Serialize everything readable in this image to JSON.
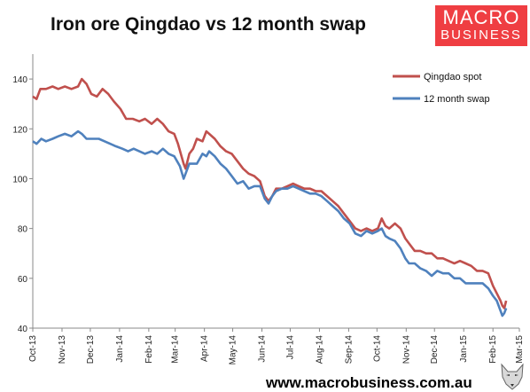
{
  "header": {
    "title": "Iron ore Qingdao vs 12 month swap"
  },
  "logo": {
    "line1": "MACRO",
    "line2": "BUSINESS"
  },
  "footer": {
    "url": "www.macrobusiness.com.au"
  },
  "colors": {
    "spot": "#c0504d",
    "swap": "#4f81bd",
    "axis": "#888888"
  },
  "chart_data": {
    "type": "line",
    "title": "Iron ore Qingdao vs 12 month swap",
    "xlabel": "",
    "ylabel": "",
    "ylim": [
      40,
      150
    ],
    "yticks": [
      40,
      60,
      80,
      100,
      120,
      140
    ],
    "xlim": [
      "2013-10-01",
      "2015-03-01"
    ],
    "xticks": [
      "Oct-13",
      "Nov-13",
      "Dec-13",
      "Jan-14",
      "Feb-14",
      "Mar-14",
      "Apr-14",
      "May-14",
      "Jun-14",
      "Jul-14",
      "Aug-14",
      "Sep-14",
      "Oct-14",
      "Nov-14",
      "Dec-14",
      "Jan-15",
      "Feb-15",
      "Mar-15"
    ],
    "grid": false,
    "legend_position": "top-right",
    "series": [
      {
        "name": "Qingdao spot",
        "color": "#c0504d",
        "points": [
          [
            "2013-10-01",
            133
          ],
          [
            "2013-10-05",
            132
          ],
          [
            "2013-10-09",
            136
          ],
          [
            "2013-10-15",
            136
          ],
          [
            "2013-10-22",
            137
          ],
          [
            "2013-10-28",
            136
          ],
          [
            "2013-11-04",
            137
          ],
          [
            "2013-11-11",
            136
          ],
          [
            "2013-11-18",
            137
          ],
          [
            "2013-11-22",
            140
          ],
          [
            "2013-11-27",
            138
          ],
          [
            "2013-12-02",
            134
          ],
          [
            "2013-12-08",
            133
          ],
          [
            "2013-12-14",
            136
          ],
          [
            "2013-12-20",
            134
          ],
          [
            "2013-12-26",
            131
          ],
          [
            "2014-01-02",
            128
          ],
          [
            "2014-01-08",
            124
          ],
          [
            "2014-01-15",
            124
          ],
          [
            "2014-01-22",
            123
          ],
          [
            "2014-01-28",
            124
          ],
          [
            "2014-02-04",
            122
          ],
          [
            "2014-02-10",
            124
          ],
          [
            "2014-02-16",
            122
          ],
          [
            "2014-02-22",
            119
          ],
          [
            "2014-02-28",
            118
          ],
          [
            "2014-03-04",
            114
          ],
          [
            "2014-03-10",
            106
          ],
          [
            "2014-03-12",
            104
          ],
          [
            "2014-03-16",
            110
          ],
          [
            "2014-03-20",
            112
          ],
          [
            "2014-03-24",
            116
          ],
          [
            "2014-03-30",
            115
          ],
          [
            "2014-04-03",
            119
          ],
          [
            "2014-04-06",
            118
          ],
          [
            "2014-04-12",
            116
          ],
          [
            "2014-04-18",
            113
          ],
          [
            "2014-04-24",
            111
          ],
          [
            "2014-04-30",
            110
          ],
          [
            "2014-05-06",
            107
          ],
          [
            "2014-05-12",
            104
          ],
          [
            "2014-05-18",
            102
          ],
          [
            "2014-05-24",
            101
          ],
          [
            "2014-05-30",
            99
          ],
          [
            "2014-06-04",
            93
          ],
          [
            "2014-06-08",
            91
          ],
          [
            "2014-06-12",
            93
          ],
          [
            "2014-06-16",
            96
          ],
          [
            "2014-06-22",
            96
          ],
          [
            "2014-06-28",
            97
          ],
          [
            "2014-07-04",
            98
          ],
          [
            "2014-07-10",
            97
          ],
          [
            "2014-07-16",
            96
          ],
          [
            "2014-07-22",
            96
          ],
          [
            "2014-07-28",
            95
          ],
          [
            "2014-08-03",
            95
          ],
          [
            "2014-08-09",
            93
          ],
          [
            "2014-08-15",
            91
          ],
          [
            "2014-08-21",
            89
          ],
          [
            "2014-08-27",
            86
          ],
          [
            "2014-09-02",
            83
          ],
          [
            "2014-09-08",
            80
          ],
          [
            "2014-09-14",
            79
          ],
          [
            "2014-09-20",
            80
          ],
          [
            "2014-09-26",
            79
          ],
          [
            "2014-10-02",
            80
          ],
          [
            "2014-10-06",
            84
          ],
          [
            "2014-10-10",
            81
          ],
          [
            "2014-10-14",
            80
          ],
          [
            "2014-10-20",
            82
          ],
          [
            "2014-10-26",
            80
          ],
          [
            "2014-10-31",
            76
          ],
          [
            "2014-11-04",
            74
          ],
          [
            "2014-11-10",
            71
          ],
          [
            "2014-11-16",
            71
          ],
          [
            "2014-11-22",
            70
          ],
          [
            "2014-11-28",
            70
          ],
          [
            "2014-12-04",
            68
          ],
          [
            "2014-12-10",
            68
          ],
          [
            "2014-12-16",
            67
          ],
          [
            "2014-12-22",
            66
          ],
          [
            "2014-12-28",
            67
          ],
          [
            "2015-01-03",
            66
          ],
          [
            "2015-01-09",
            65
          ],
          [
            "2015-01-15",
            63
          ],
          [
            "2015-01-21",
            63
          ],
          [
            "2015-01-27",
            62
          ],
          [
            "2015-02-01",
            57
          ],
          [
            "2015-02-05",
            54
          ],
          [
            "2015-02-09",
            51
          ],
          [
            "2015-02-11",
            49
          ],
          [
            "2015-02-13",
            48
          ],
          [
            "2015-02-15",
            51
          ]
        ]
      },
      {
        "name": "12 month swap",
        "color": "#4f81bd",
        "points": [
          [
            "2013-10-01",
            115
          ],
          [
            "2013-10-05",
            114
          ],
          [
            "2013-10-10",
            116
          ],
          [
            "2013-10-15",
            115
          ],
          [
            "2013-10-22",
            116
          ],
          [
            "2013-10-28",
            117
          ],
          [
            "2013-11-04",
            118
          ],
          [
            "2013-11-11",
            117
          ],
          [
            "2013-11-18",
            119
          ],
          [
            "2013-11-22",
            118
          ],
          [
            "2013-11-27",
            116
          ],
          [
            "2013-12-04",
            116
          ],
          [
            "2013-12-10",
            116
          ],
          [
            "2013-12-16",
            115
          ],
          [
            "2013-12-22",
            114
          ],
          [
            "2013-12-28",
            113
          ],
          [
            "2014-01-04",
            112
          ],
          [
            "2014-01-10",
            111
          ],
          [
            "2014-01-16",
            112
          ],
          [
            "2014-01-22",
            111
          ],
          [
            "2014-01-28",
            110
          ],
          [
            "2014-02-04",
            111
          ],
          [
            "2014-02-10",
            110
          ],
          [
            "2014-02-16",
            112
          ],
          [
            "2014-02-22",
            110
          ],
          [
            "2014-02-28",
            109
          ],
          [
            "2014-03-06",
            105
          ],
          [
            "2014-03-10",
            100
          ],
          [
            "2014-03-12",
            102
          ],
          [
            "2014-03-16",
            106
          ],
          [
            "2014-03-20",
            106
          ],
          [
            "2014-03-24",
            106
          ],
          [
            "2014-03-30",
            110
          ],
          [
            "2014-04-03",
            109
          ],
          [
            "2014-04-06",
            111
          ],
          [
            "2014-04-12",
            109
          ],
          [
            "2014-04-18",
            106
          ],
          [
            "2014-04-24",
            104
          ],
          [
            "2014-04-30",
            101
          ],
          [
            "2014-05-06",
            98
          ],
          [
            "2014-05-12",
            99
          ],
          [
            "2014-05-18",
            96
          ],
          [
            "2014-05-24",
            97
          ],
          [
            "2014-05-30",
            97
          ],
          [
            "2014-06-04",
            92
          ],
          [
            "2014-06-08",
            90
          ],
          [
            "2014-06-12",
            93
          ],
          [
            "2014-06-16",
            95
          ],
          [
            "2014-06-22",
            96
          ],
          [
            "2014-06-28",
            96
          ],
          [
            "2014-07-04",
            97
          ],
          [
            "2014-07-10",
            96
          ],
          [
            "2014-07-16",
            95
          ],
          [
            "2014-07-22",
            94
          ],
          [
            "2014-07-28",
            94
          ],
          [
            "2014-08-03",
            93
          ],
          [
            "2014-08-09",
            91
          ],
          [
            "2014-08-15",
            89
          ],
          [
            "2014-08-21",
            87
          ],
          [
            "2014-08-27",
            84
          ],
          [
            "2014-09-02",
            82
          ],
          [
            "2014-09-08",
            78
          ],
          [
            "2014-09-14",
            77
          ],
          [
            "2014-09-20",
            79
          ],
          [
            "2014-09-26",
            78
          ],
          [
            "2014-10-02",
            79
          ],
          [
            "2014-10-06",
            80
          ],
          [
            "2014-10-10",
            77
          ],
          [
            "2014-10-14",
            76
          ],
          [
            "2014-10-20",
            75
          ],
          [
            "2014-10-26",
            72
          ],
          [
            "2014-10-31",
            68
          ],
          [
            "2014-11-04",
            66
          ],
          [
            "2014-11-10",
            66
          ],
          [
            "2014-11-16",
            64
          ],
          [
            "2014-11-22",
            63
          ],
          [
            "2014-11-28",
            61
          ],
          [
            "2014-12-04",
            63
          ],
          [
            "2014-12-10",
            62
          ],
          [
            "2014-12-16",
            62
          ],
          [
            "2014-12-22",
            60
          ],
          [
            "2014-12-28",
            60
          ],
          [
            "2015-01-03",
            58
          ],
          [
            "2015-01-09",
            58
          ],
          [
            "2015-01-15",
            58
          ],
          [
            "2015-01-21",
            58
          ],
          [
            "2015-01-27",
            56
          ],
          [
            "2015-02-01",
            53
          ],
          [
            "2015-02-05",
            51
          ],
          [
            "2015-02-09",
            47
          ],
          [
            "2015-02-11",
            45
          ],
          [
            "2015-02-13",
            46
          ],
          [
            "2015-02-15",
            48
          ]
        ]
      }
    ]
  }
}
